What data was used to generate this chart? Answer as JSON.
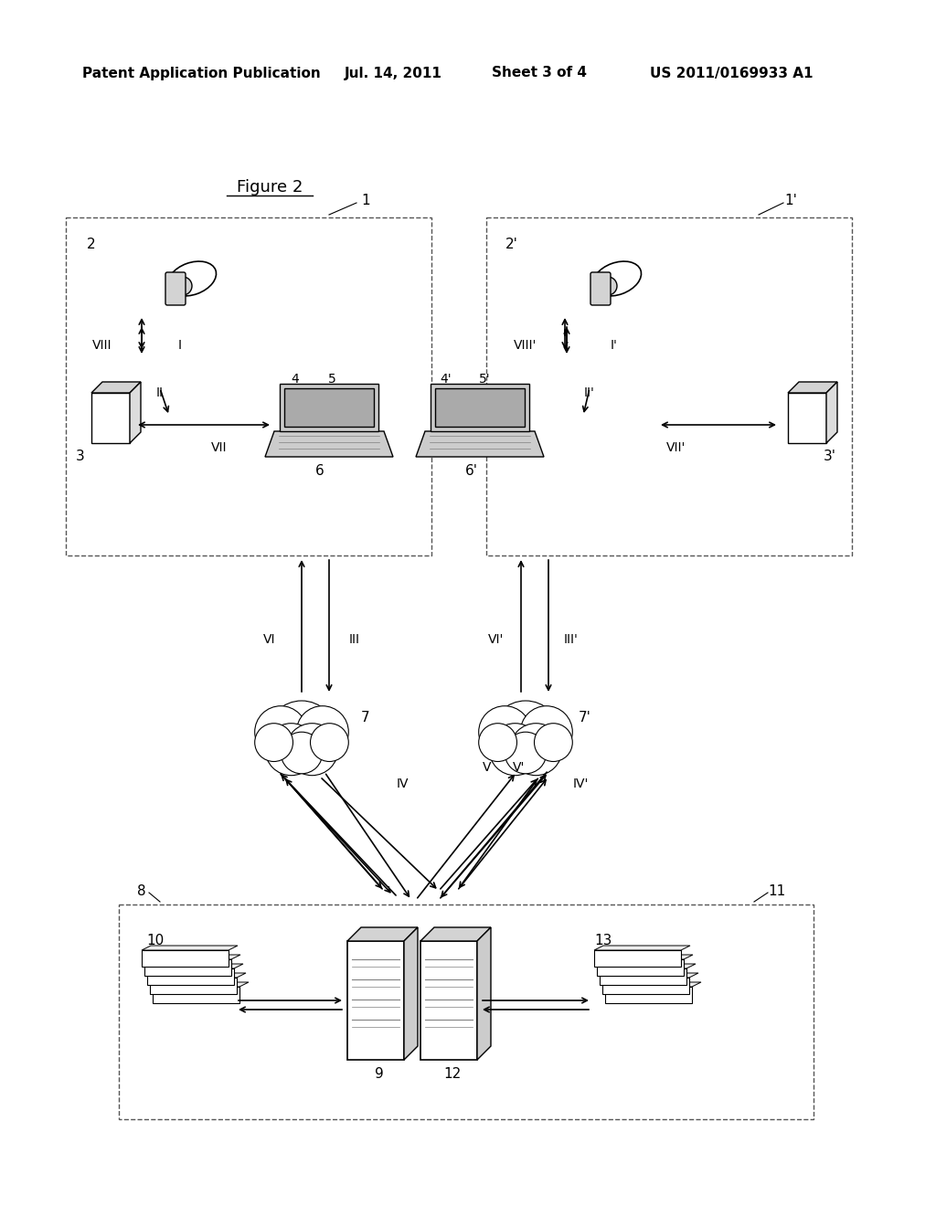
{
  "title_header": "Patent Application Publication",
  "date_header": "Jul. 14, 2011",
  "sheet_header": "Sheet 3 of 4",
  "patent_header": "US 2011/0169933 A1",
  "figure_label": "Figure 2",
  "bg_color": "#ffffff",
  "text_color": "#000000",
  "box_color": "#000000",
  "dashed_color": "#555555"
}
